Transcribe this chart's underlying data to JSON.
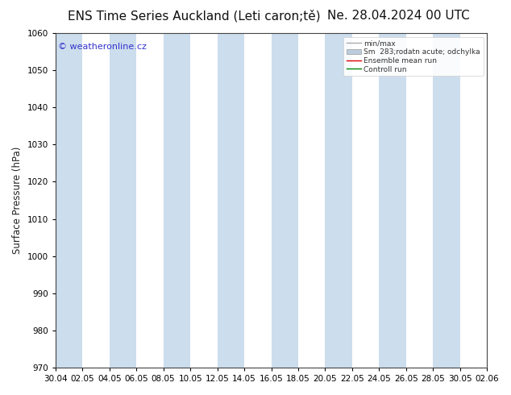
{
  "title_left": "ENS Time Series Auckland (Leti caron;tě)",
  "title_right": "Ne. 28.04.2024 00 UTC",
  "ylabel": "Surface Pressure (hPa)",
  "ylim": [
    970,
    1060
  ],
  "yticks": [
    970,
    980,
    990,
    1000,
    1010,
    1020,
    1030,
    1040,
    1050,
    1060
  ],
  "x_tick_labels": [
    "30.04",
    "02.05",
    "04.05",
    "06.05",
    "08.05",
    "10.05",
    "12.05",
    "14.05",
    "16.05",
    "18.05",
    "20.05",
    "22.05",
    "24.05",
    "26.05",
    "28.05",
    "30.05",
    "02.06"
  ],
  "watermark": "© weatheronline.cz",
  "legend_entries": [
    "min/max",
    "Sm  283;rodatn acute; odchylka",
    "Ensemble mean run",
    "Controll run"
  ],
  "band_color_light": "#ffffff",
  "band_color_dark": "#ccdded",
  "fig_bg": "#ffffff",
  "title_fontsize": 11,
  "tick_fontsize": 7.5,
  "ylabel_fontsize": 8.5,
  "watermark_color": "#3333cc",
  "legend_color_minmax": "#aaaaaa",
  "legend_color_std": "#bbccdd",
  "legend_color_mean": "#dd0000",
  "legend_color_ctrl": "#008800"
}
